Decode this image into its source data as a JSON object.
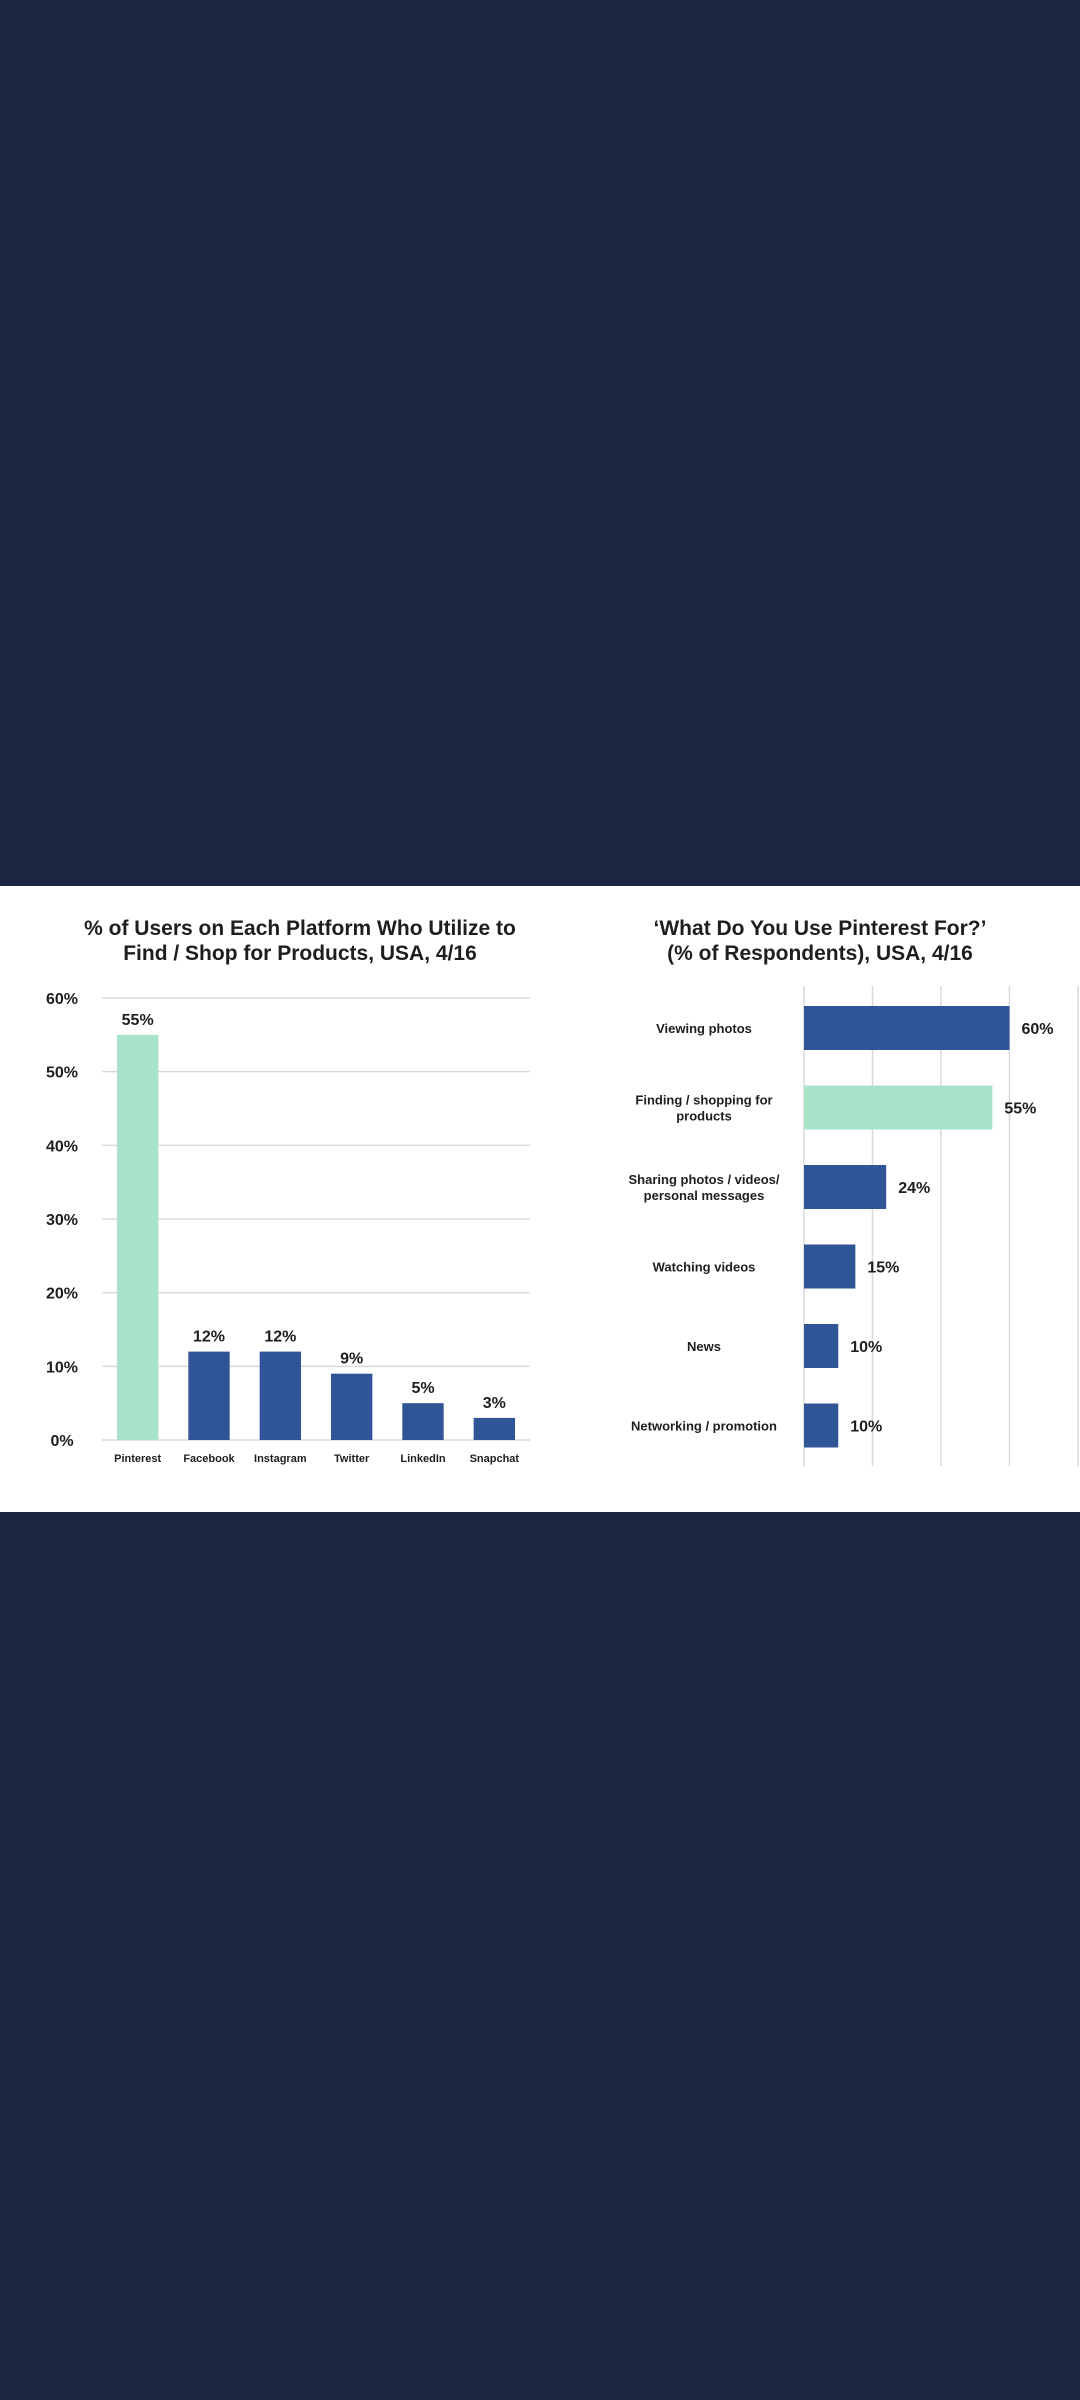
{
  "colors": {
    "background": "#1b2640",
    "panel": "#ffffff",
    "bar_blue": "#2f5597",
    "bar_mint": "#a8e2c8",
    "grid": "#d9d9d9"
  },
  "chart_data": [
    {
      "type": "bar",
      "orientation": "vertical",
      "title": "% of Users on Each Platform Who Utilize to Find / Shop for Products, USA, 4/16",
      "title_lines": [
        "% of Users on Each Platform Who Utilize to",
        "Find / Shop for Products, USA, 4/16"
      ],
      "categories": [
        "Pinterest",
        "Facebook",
        "Instagram",
        "Twitter",
        "LinkedIn",
        "Snapchat"
      ],
      "values": [
        55,
        12,
        12,
        9,
        5,
        3
      ],
      "value_labels": [
        "55%",
        "12%",
        "12%",
        "9%",
        "5%",
        "3%"
      ],
      "highlight_index": 0,
      "ylim": [
        0,
        60
      ],
      "yticks": [
        "0%",
        "10%",
        "20%",
        "30%",
        "40%",
        "50%",
        "60%"
      ],
      "grid": true
    },
    {
      "type": "bar",
      "orientation": "horizontal",
      "title": "'What Do You Use Pinterest For?' (% of Respondents), USA, 4/16",
      "title_lines": [
        "‘What Do You Use Pinterest For?’",
        "(% of Respondents), USA, 4/16"
      ],
      "categories": [
        [
          "Viewing photos"
        ],
        [
          "Finding / shopping for",
          "products"
        ],
        [
          "Sharing photos / videos/",
          "personal messages"
        ],
        [
          "Watching videos"
        ],
        [
          "News"
        ],
        [
          "Networking / promotion"
        ]
      ],
      "values": [
        60,
        55,
        24,
        15,
        10,
        10
      ],
      "value_labels": [
        "60%",
        "55%",
        "24%",
        "15%",
        "10%",
        "10%"
      ],
      "highlight_index": 1,
      "xlim": [
        0,
        60
      ],
      "grid": true
    }
  ]
}
